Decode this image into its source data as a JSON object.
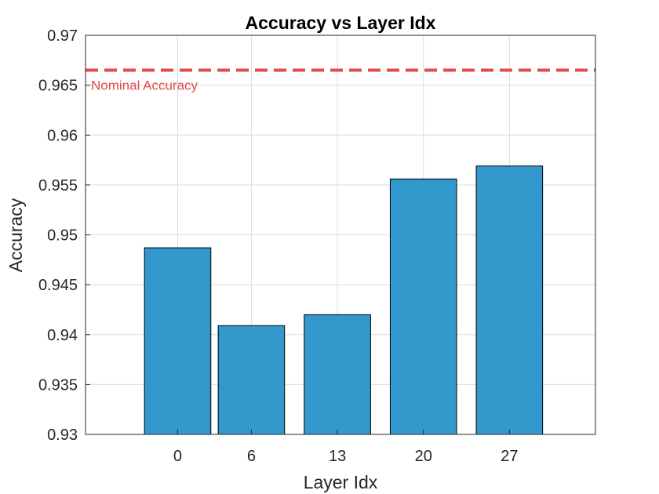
{
  "chart_data": {
    "type": "bar",
    "title": "Accuracy vs Layer Idx",
    "xlabel": "Layer Idx",
    "ylabel": "Accuracy",
    "categories": [
      "0",
      "6",
      "13",
      "20",
      "27"
    ],
    "x": [
      0,
      6,
      13,
      20,
      27
    ],
    "values": [
      0.9487,
      0.9409,
      0.942,
      0.9556,
      0.9569
    ],
    "xlim": [
      -7.5,
      34
    ],
    "ylim": [
      0.93,
      0.97
    ],
    "yticks": [
      "0.93",
      "0.935",
      "0.94",
      "0.945",
      "0.95",
      "0.955",
      "0.96",
      "0.965",
      "0.97"
    ],
    "ytick_values": [
      0.93,
      0.935,
      0.94,
      0.945,
      0.95,
      0.955,
      0.96,
      0.965,
      0.97
    ],
    "grid": true,
    "bar_color": "#3399cc",
    "reference_line": {
      "value": 0.9665,
      "label": "Nominal Accuracy",
      "color": "#e5484d",
      "style": "dashed"
    }
  }
}
